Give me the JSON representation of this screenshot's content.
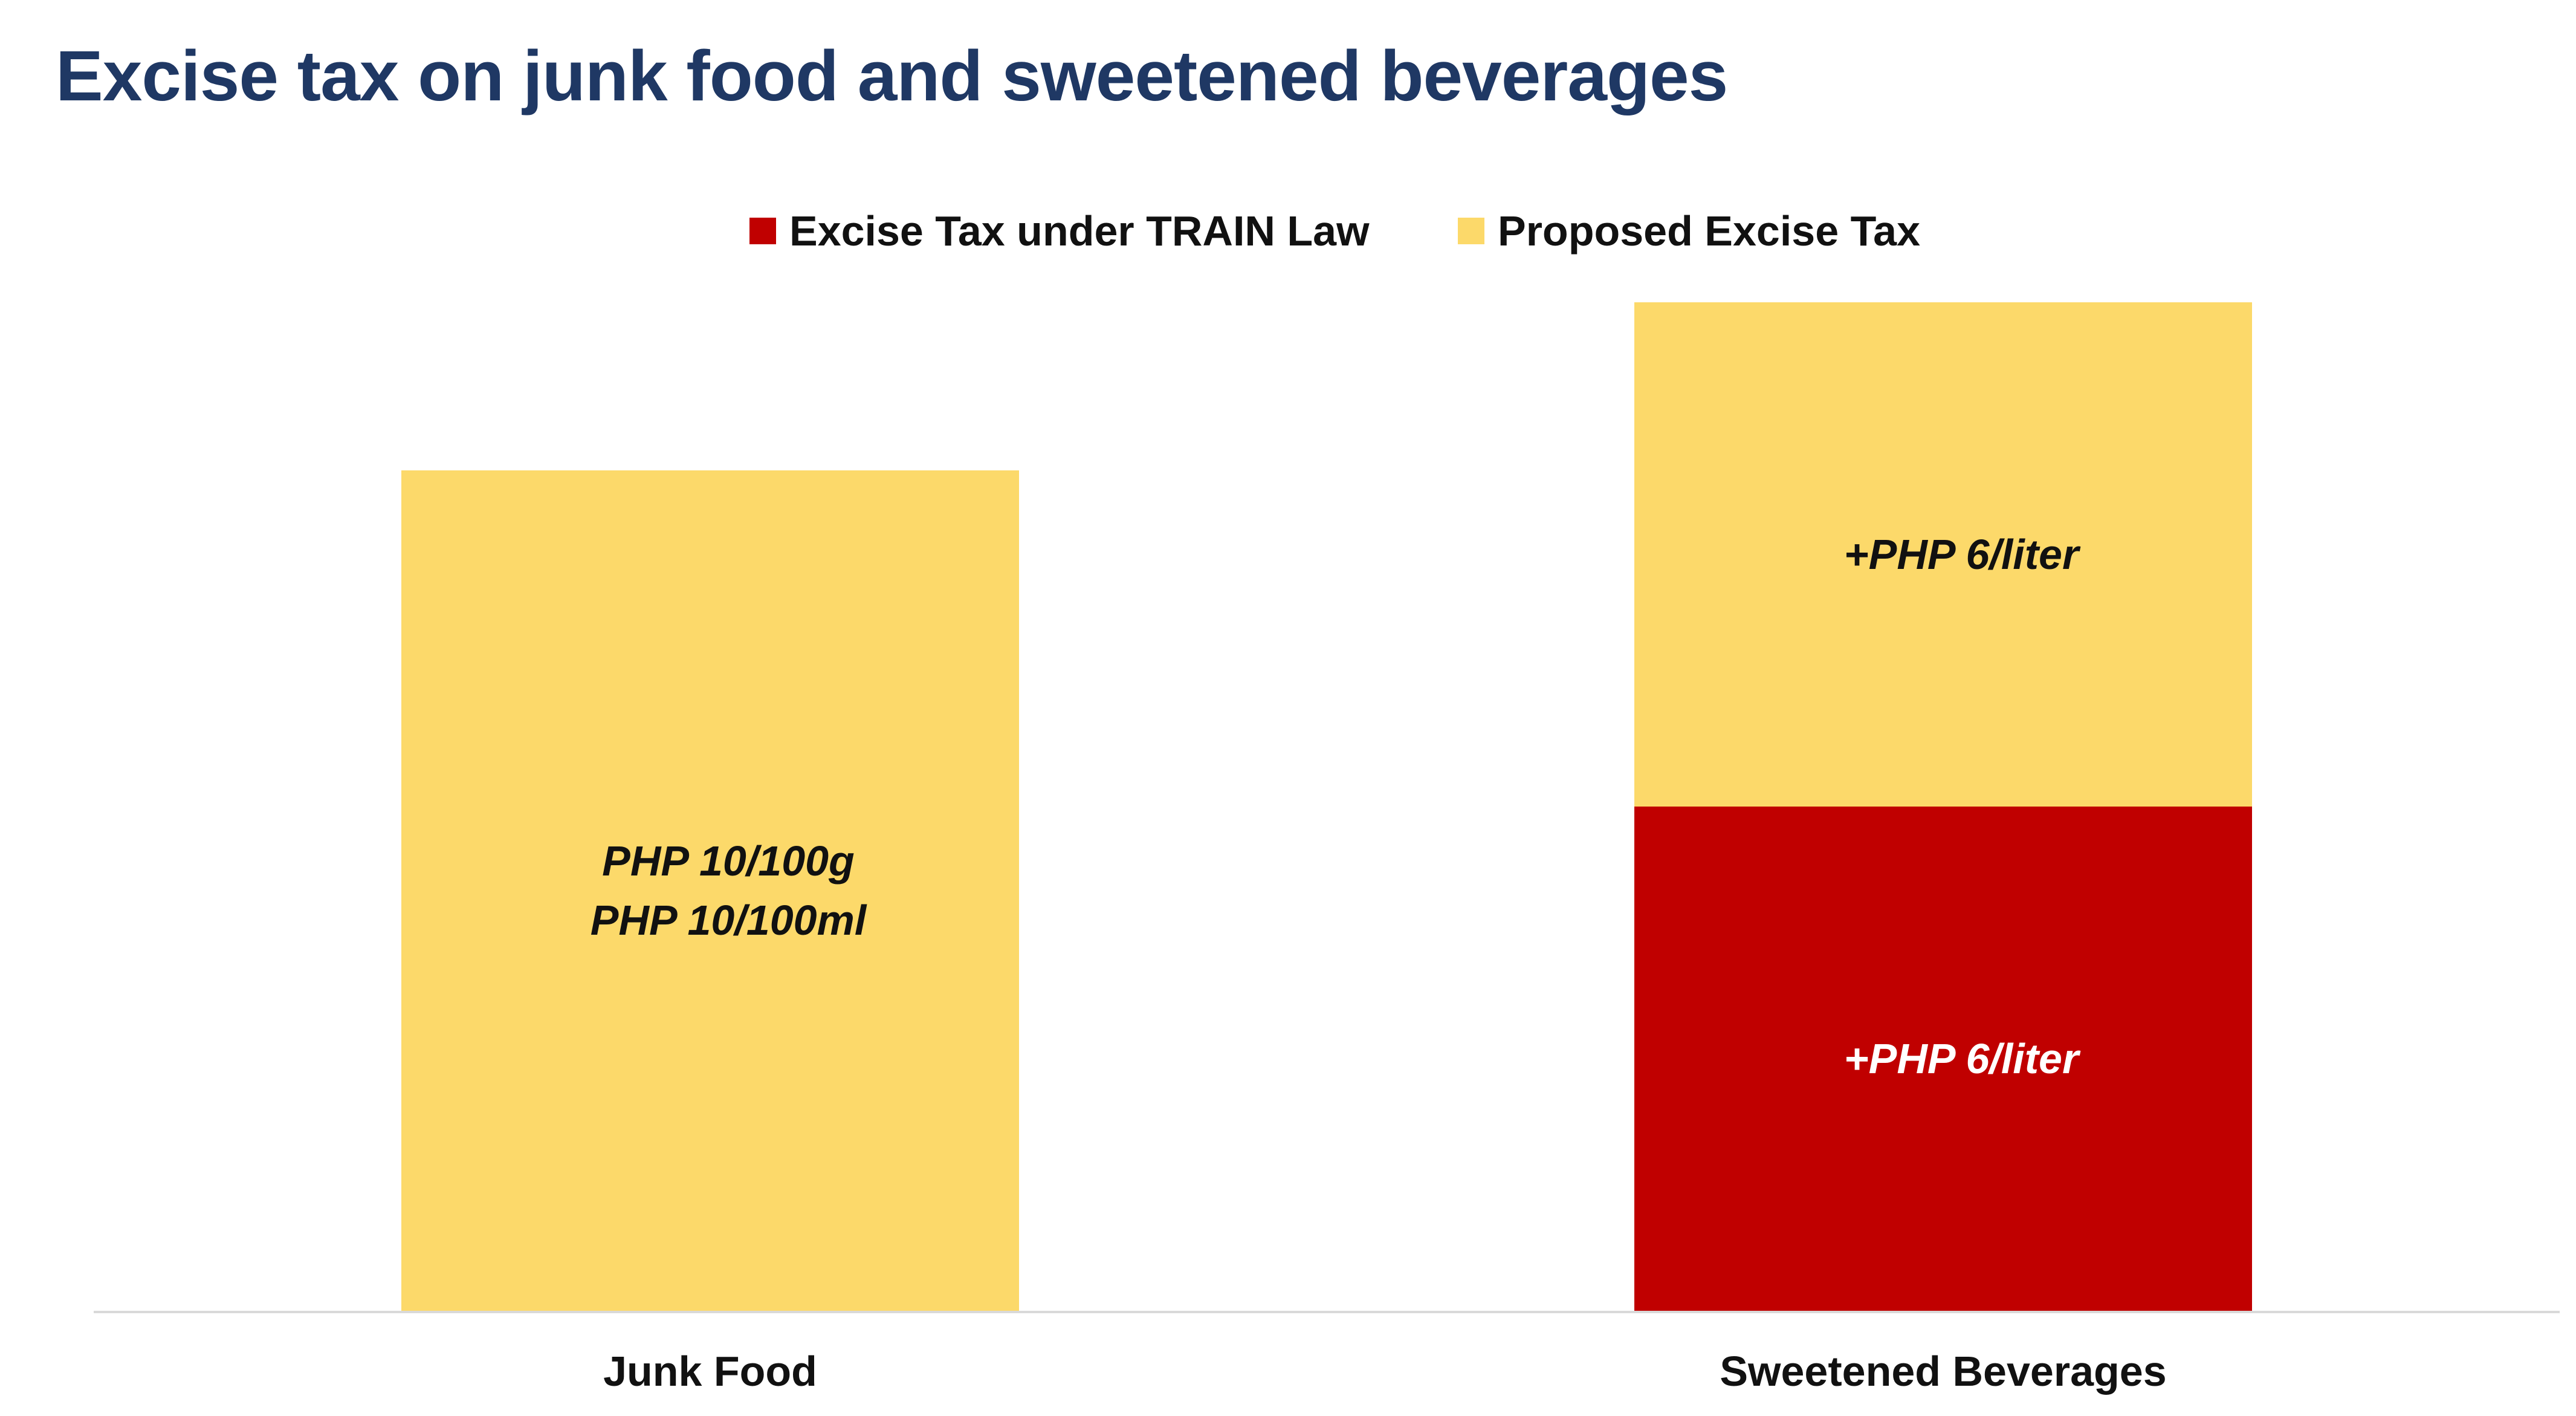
{
  "chart_data": {
    "type": "bar",
    "stacked": true,
    "title": "Excise tax on junk food and sweetened beverages",
    "categories": [
      "Junk Food",
      "Sweetened Beverages"
    ],
    "series": [
      {
        "name": "Excise Tax under TRAIN Law",
        "color": "#c00000",
        "label_color": "#ffffff",
        "values": [
          0,
          6
        ],
        "labels": [
          "",
          "+PHP 6/liter"
        ]
      },
      {
        "name": "Proposed Excise Tax",
        "color": "#fcd96a",
        "label_color": "#111111",
        "values": [
          10,
          6
        ],
        "labels": [
          "PHP 10/100g\nPHP 10/100ml",
          "+PHP 6/liter"
        ]
      }
    ],
    "ylim": [
      0,
      12
    ],
    "grid": false,
    "y_axis_visible": false,
    "legend_position": "top-center",
    "xlabel": "",
    "ylabel": ""
  }
}
